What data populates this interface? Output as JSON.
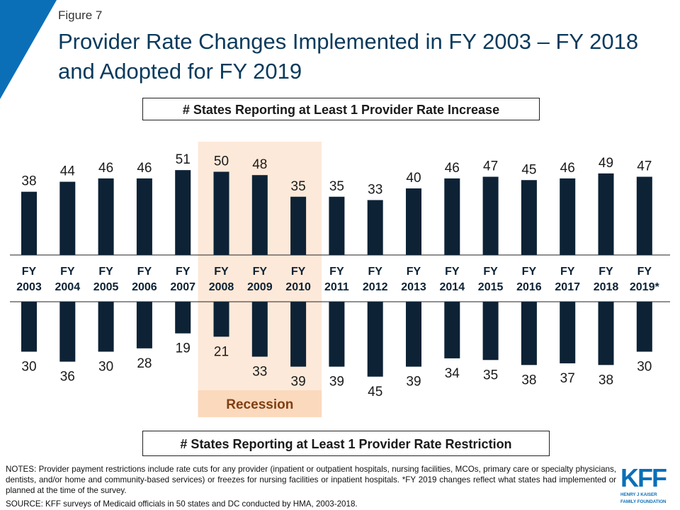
{
  "figure_label": "Figure 7",
  "title": "Provider Rate Changes Implemented in FY 2003 – FY 2018 and Adopted for FY 2019",
  "increase_box": "# States Reporting at Least 1 Provider Rate Increase",
  "restriction_box": "# States Reporting at Least 1 Provider Rate Restriction",
  "notes": "NOTES: Provider payment restrictions include rate cuts for any provider (inpatient or outpatient hospitals, nursing facilities, MCOs, primary care or specialty physicians, dentists, and/or home and community-based services) or freezes for nursing facilities or inpatient hospitals. *FY 2019 changes reflect what states had implemented or planned at the time of the survey.",
  "source": "SOURCE: KFF surveys of Medicaid officials in 50 states and DC conducted by HMA, 2003-2018.",
  "logo": {
    "text": "KFF",
    "subtitle_line1": "HENRY J KAISER",
    "subtitle_line2": "FAMILY FOUNDATION"
  },
  "colors": {
    "bar": "#0d2235",
    "recession_band": "#fde9d9",
    "recession_text": "#7f3f12",
    "accent": "#0b6fb8",
    "title": "#0b3a5c"
  },
  "chart_data": {
    "type": "bar",
    "categories": [
      [
        "FY",
        "2003"
      ],
      [
        "FY",
        "2004"
      ],
      [
        "FY",
        "2005"
      ],
      [
        "FY",
        "2006"
      ],
      [
        "FY",
        "2007"
      ],
      [
        "FY",
        "2008"
      ],
      [
        "FY",
        "2009"
      ],
      [
        "FY",
        "2010"
      ],
      [
        "FY",
        "2011"
      ],
      [
        "FY",
        "2012"
      ],
      [
        "FY",
        "2013"
      ],
      [
        "FY",
        "2014"
      ],
      [
        "FY",
        "2015"
      ],
      [
        "FY",
        "2016"
      ],
      [
        "FY",
        "2017"
      ],
      [
        "FY",
        "2018"
      ],
      [
        "FY",
        "2019*"
      ]
    ],
    "series": [
      {
        "name": "# States Reporting at Least 1 Provider Rate Increase",
        "values": [
          38,
          44,
          46,
          46,
          51,
          50,
          48,
          35,
          35,
          33,
          40,
          46,
          47,
          45,
          46,
          49,
          47
        ]
      },
      {
        "name": "# States Reporting at Least 1 Provider Rate Restriction",
        "values": [
          30,
          36,
          30,
          28,
          19,
          21,
          33,
          39,
          39,
          45,
          39,
          34,
          35,
          38,
          37,
          38,
          30
        ]
      }
    ],
    "annotation": {
      "label": "Recession",
      "categories": [
        "FY 2008",
        "FY 2009",
        "FY 2010"
      ]
    },
    "grid": false,
    "legend": "none"
  }
}
